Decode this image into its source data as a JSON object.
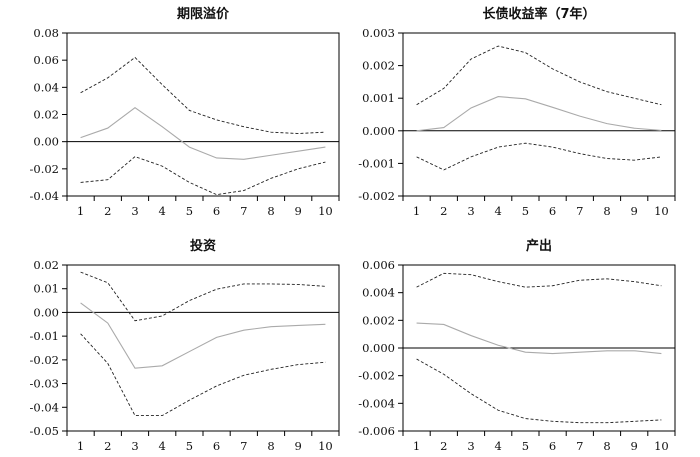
{
  "chart_data": [
    {
      "type": "line",
      "title": "期限溢价",
      "x": [
        1,
        2,
        3,
        4,
        5,
        6,
        7,
        8,
        9,
        10
      ],
      "ylim": [
        -0.04,
        0.08
      ],
      "yticks": [
        "0.08",
        "0.06",
        "0.04",
        "0.02",
        "0.00",
        "-0.02",
        "-0.04"
      ],
      "ytick_values": [
        0.08,
        0.06,
        0.04,
        0.02,
        0.0,
        -0.02,
        -0.04
      ],
      "xticks": [
        "1",
        "2",
        "3",
        "4",
        "5",
        "6",
        "7",
        "8",
        "9",
        "10"
      ],
      "zero_line": true,
      "series": [
        {
          "name": "upper",
          "style": "dashed",
          "color": "#222222",
          "values": [
            0.036,
            0.047,
            0.062,
            0.042,
            0.023,
            0.016,
            0.011,
            0.007,
            0.006,
            0.007
          ]
        },
        {
          "name": "response",
          "style": "solid",
          "color": "#aaaaaa",
          "values": [
            0.003,
            0.01,
            0.025,
            0.011,
            -0.004,
            -0.012,
            -0.013,
            -0.01,
            -0.007,
            -0.004
          ]
        },
        {
          "name": "lower",
          "style": "dashed",
          "color": "#222222",
          "values": [
            -0.03,
            -0.028,
            -0.011,
            -0.018,
            -0.03,
            -0.039,
            -0.036,
            -0.027,
            -0.02,
            -0.015
          ]
        }
      ]
    },
    {
      "type": "line",
      "title": "长债收益率（7年）",
      "x": [
        1,
        2,
        3,
        4,
        5,
        6,
        7,
        8,
        9,
        10
      ],
      "ylim": [
        -0.002,
        0.003
      ],
      "yticks": [
        "0.003",
        "0.002",
        "0.001",
        "0.000",
        "-0.001",
        "-0.002"
      ],
      "ytick_values": [
        0.003,
        0.002,
        0.001,
        0.0,
        -0.001,
        -0.002
      ],
      "xticks": [
        "1",
        "2",
        "3",
        "4",
        "5",
        "6",
        "7",
        "8",
        "9",
        "10"
      ],
      "zero_line": true,
      "series": [
        {
          "name": "upper",
          "style": "dashed",
          "color": "#222222",
          "values": [
            0.0008,
            0.0013,
            0.0022,
            0.0026,
            0.0024,
            0.0019,
            0.0015,
            0.0012,
            0.001,
            0.0008
          ]
        },
        {
          "name": "response",
          "style": "solid",
          "color": "#aaaaaa",
          "values": [
            0.0,
            0.0001,
            0.0007,
            0.00105,
            0.00098,
            0.00072,
            0.00045,
            0.00022,
            8e-05,
            1e-05
          ]
        },
        {
          "name": "lower",
          "style": "dashed",
          "color": "#222222",
          "values": [
            -0.0008,
            -0.0012,
            -0.0008,
            -0.0005,
            -0.00038,
            -0.0005,
            -0.0007,
            -0.00085,
            -0.0009,
            -0.0008
          ]
        }
      ]
    },
    {
      "type": "line",
      "title": "投资",
      "x": [
        1,
        2,
        3,
        4,
        5,
        6,
        7,
        8,
        9,
        10
      ],
      "ylim": [
        -0.05,
        0.02
      ],
      "yticks": [
        "0.02",
        "0.01",
        "0.00",
        "-0.01",
        "-0.02",
        "-0.03",
        "-0.04",
        "-0.05"
      ],
      "ytick_values": [
        0.02,
        0.01,
        0.0,
        -0.01,
        -0.02,
        -0.03,
        -0.04,
        -0.05
      ],
      "xticks": [
        "1",
        "2",
        "3",
        "4",
        "5",
        "6",
        "7",
        "8",
        "9",
        "10"
      ],
      "zero_line": true,
      "series": [
        {
          "name": "upper",
          "style": "dashed",
          "color": "#222222",
          "values": [
            0.017,
            0.0125,
            -0.0035,
            -0.0015,
            0.005,
            0.0098,
            0.012,
            0.012,
            0.0118,
            0.011
          ]
        },
        {
          "name": "response",
          "style": "solid",
          "color": "#aaaaaa",
          "values": [
            0.004,
            -0.0045,
            -0.0235,
            -0.0225,
            -0.0165,
            -0.0105,
            -0.0075,
            -0.006,
            -0.0055,
            -0.005
          ]
        },
        {
          "name": "lower",
          "style": "dashed",
          "color": "#222222",
          "values": [
            -0.009,
            -0.0215,
            -0.0435,
            -0.0435,
            -0.037,
            -0.031,
            -0.0265,
            -0.024,
            -0.022,
            -0.021
          ]
        }
      ]
    },
    {
      "type": "line",
      "title": "产出",
      "x": [
        1,
        2,
        3,
        4,
        5,
        6,
        7,
        8,
        9,
        10
      ],
      "ylim": [
        -0.006,
        0.006
      ],
      "yticks": [
        "0.006",
        "0.004",
        "0.002",
        "0.000",
        "-0.002",
        "-0.004",
        "-0.006"
      ],
      "ytick_values": [
        0.006,
        0.004,
        0.002,
        0.0,
        -0.002,
        -0.004,
        -0.006
      ],
      "xticks": [
        "1",
        "2",
        "3",
        "4",
        "5",
        "6",
        "7",
        "8",
        "9",
        "10"
      ],
      "zero_line": true,
      "series": [
        {
          "name": "upper",
          "style": "dashed",
          "color": "#222222",
          "values": [
            0.0044,
            0.0054,
            0.0053,
            0.0048,
            0.0044,
            0.0045,
            0.0049,
            0.005,
            0.0048,
            0.0045
          ]
        },
        {
          "name": "response",
          "style": "solid",
          "color": "#aaaaaa",
          "values": [
            0.0018,
            0.0017,
            0.0009,
            0.0002,
            -0.0003,
            -0.0004,
            -0.0003,
            -0.0002,
            -0.0002,
            -0.0004
          ]
        },
        {
          "name": "lower",
          "style": "dashed",
          "color": "#222222",
          "values": [
            -0.0008,
            -0.0019,
            -0.0033,
            -0.0045,
            -0.0051,
            -0.0053,
            -0.0054,
            -0.0054,
            -0.0053,
            -0.0052
          ]
        }
      ]
    }
  ]
}
